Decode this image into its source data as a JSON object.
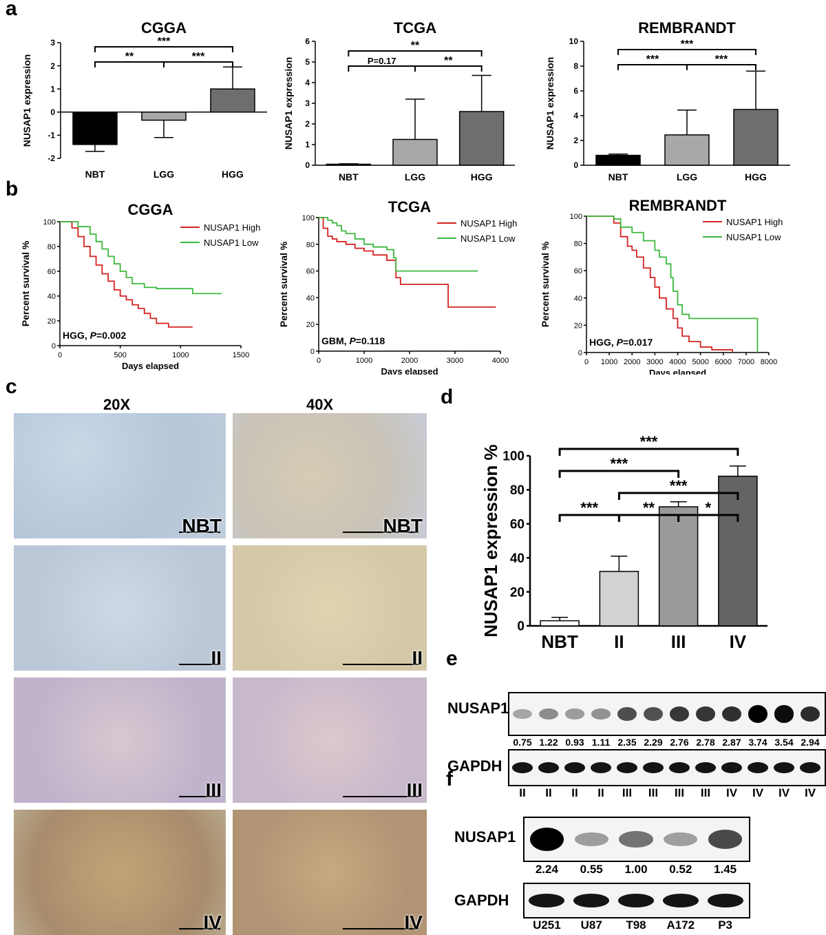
{
  "panel_labels": {
    "a": "a",
    "b": "b",
    "c": "c",
    "d": "d",
    "e": "e",
    "f": "f"
  },
  "chart_data": [
    {
      "id": "a1",
      "type": "bar",
      "title": "CGGA",
      "ylabel": "NUSAP1 expression",
      "xlabel": "",
      "categories": [
        "NBT",
        "LGG",
        "HGG"
      ],
      "values": [
        -1.4,
        -0.35,
        1.0
      ],
      "errors": [
        0.3,
        0.75,
        0.95
      ],
      "colors": [
        "#000000",
        "#a8a8a8",
        "#6e6e6e"
      ],
      "ylim": [
        -2,
        3
      ],
      "yticks": [
        "-2",
        "-1",
        "0",
        "1",
        "2",
        "3"
      ],
      "sig": [
        {
          "label": "***",
          "from": 0,
          "to": 2,
          "level": 1
        },
        {
          "label": "**",
          "from": 0,
          "to": 1,
          "level": 0
        },
        {
          "label": "***",
          "from": 1,
          "to": 2,
          "level": 0
        }
      ]
    },
    {
      "id": "a2",
      "type": "bar",
      "title": "TCGA",
      "ylabel": "NUSAP1 expression",
      "xlabel": "",
      "categories": [
        "NBT",
        "LGG",
        "HGG"
      ],
      "values": [
        0.05,
        1.25,
        2.6
      ],
      "errors": [
        0.02,
        1.95,
        1.75
      ],
      "colors": [
        "#000000",
        "#a8a8a8",
        "#6e6e6e"
      ],
      "ylim": [
        0,
        6
      ],
      "yticks": [
        "0",
        "1",
        "2",
        "3",
        "4",
        "5",
        "6"
      ],
      "sig": [
        {
          "label": "**",
          "from": 0,
          "to": 2,
          "level": 1
        },
        {
          "label": "P=0.17",
          "from": 0,
          "to": 1,
          "level": 0
        },
        {
          "label": "**",
          "from": 1,
          "to": 2,
          "level": 0
        }
      ]
    },
    {
      "id": "a3",
      "type": "bar",
      "title": "REMBRANDT",
      "ylabel": "NUSAP1 expression",
      "xlabel": "",
      "categories": [
        "NBT",
        "LGG",
        "HGG"
      ],
      "values": [
        0.8,
        2.45,
        4.5
      ],
      "errors": [
        0.1,
        2.0,
        3.1
      ],
      "colors": [
        "#000000",
        "#a8a8a8",
        "#6e6e6e"
      ],
      "ylim": [
        0,
        10
      ],
      "yticks": [
        "0",
        "2",
        "4",
        "6",
        "8",
        "10"
      ],
      "sig": [
        {
          "label": "***",
          "from": 0,
          "to": 2,
          "level": 1
        },
        {
          "label": "***",
          "from": 0,
          "to": 1,
          "level": 0
        },
        {
          "label": "***",
          "from": 1,
          "to": 2,
          "level": 0
        }
      ]
    },
    {
      "id": "b1",
      "type": "line",
      "title": "CGGA",
      "ylabel": "Percent survival %",
      "xlabel": "Days elapsed",
      "xlim": [
        0,
        1500
      ],
      "ylim": [
        0,
        100
      ],
      "xticks": [
        "0",
        "500",
        "1000",
        "1500"
      ],
      "yticks": [
        "0",
        "20",
        "40",
        "60",
        "80",
        "100"
      ],
      "annotation": {
        "group": "HGG, ",
        "p": "P",
        "val": "=0.002"
      },
      "series": [
        {
          "name": "NUSAP1 High",
          "color": "#d62020",
          "x": [
            0,
            100,
            150,
            200,
            250,
            300,
            350,
            400,
            450,
            500,
            550,
            600,
            650,
            700,
            750,
            800,
            900,
            1000,
            1100
          ],
          "y": [
            100,
            95,
            88,
            80,
            72,
            65,
            58,
            52,
            45,
            40,
            37,
            33,
            30,
            26,
            22,
            18,
            15,
            15,
            15
          ]
        },
        {
          "name": "NUSAP1 Low",
          "color": "#3cb83c",
          "x": [
            0,
            150,
            250,
            300,
            350,
            400,
            450,
            500,
            550,
            600,
            700,
            800,
            900,
            1000,
            1100,
            1200,
            1340
          ],
          "y": [
            100,
            96,
            90,
            84,
            78,
            72,
            66,
            60,
            55,
            50,
            47,
            46,
            46,
            46,
            42,
            42,
            42
          ]
        }
      ]
    },
    {
      "id": "b2",
      "type": "line",
      "title": "TCGA",
      "ylabel": "Percent survival %",
      "xlabel": "Days elapsed",
      "xlim": [
        0,
        4000
      ],
      "ylim": [
        0,
        100
      ],
      "xticks": [
        "0",
        "1000",
        "2000",
        "3000",
        "4000"
      ],
      "yticks": [
        "0",
        "20",
        "40",
        "60",
        "80",
        "100"
      ],
      "annotation": {
        "group": "GBM, ",
        "p": "P",
        "val": "=0.118"
      },
      "series": [
        {
          "name": "NUSAP1 High",
          "color": "#d62020",
          "x": [
            0,
            100,
            200,
            300,
            400,
            600,
            800,
            1000,
            1200,
            1500,
            1700,
            1800,
            2800,
            2850,
            3900
          ],
          "y": [
            100,
            92,
            86,
            84,
            82,
            80,
            77,
            75,
            72,
            68,
            55,
            50,
            50,
            33,
            33
          ]
        },
        {
          "name": "NUSAP1 Low",
          "color": "#3cb83c",
          "x": [
            0,
            200,
            300,
            400,
            500,
            600,
            800,
            1000,
            1200,
            1500,
            1650,
            1700,
            1800,
            2000,
            3500
          ],
          "y": [
            100,
            98,
            96,
            94,
            90,
            88,
            84,
            80,
            78,
            76,
            70,
            60,
            60,
            60,
            60
          ]
        }
      ]
    },
    {
      "id": "b3",
      "type": "line",
      "title": "REMBRANDT",
      "ylabel": "Percent survival %",
      "xlabel": "Days elapsed",
      "xlim": [
        0,
        8000
      ],
      "ylim": [
        0,
        100
      ],
      "xticks": [
        "0",
        "1000",
        "2000",
        "3000",
        "4000",
        "5000",
        "6000",
        "7000",
        "8000"
      ],
      "yticks": [
        "0",
        "20",
        "40",
        "60",
        "80",
        "100"
      ],
      "annotation": {
        "group": "HGG, ",
        "p": "P",
        "val": "=0.017"
      },
      "series": [
        {
          "name": "NUSAP1 High",
          "color": "#d62020",
          "x": [
            0,
            1000,
            1200,
            1500,
            1800,
            2000,
            2200,
            2500,
            2800,
            3000,
            3200,
            3500,
            3800,
            4000,
            4200,
            4500,
            5000,
            5500,
            6000,
            6400
          ],
          "y": [
            100,
            100,
            95,
            85,
            78,
            75,
            70,
            62,
            55,
            48,
            40,
            32,
            25,
            18,
            12,
            8,
            4,
            2,
            2,
            0
          ]
        },
        {
          "name": "NUSAP1 Low",
          "color": "#3cb83c",
          "x": [
            0,
            1000,
            1200,
            1500,
            2000,
            2500,
            3000,
            3200,
            3500,
            3700,
            3800,
            4000,
            4200,
            4500,
            5000,
            6000,
            7400,
            7500
          ],
          "y": [
            100,
            100,
            98,
            92,
            88,
            82,
            75,
            70,
            65,
            55,
            45,
            35,
            28,
            25,
            25,
            25,
            25,
            0
          ]
        }
      ]
    },
    {
      "id": "d",
      "type": "bar",
      "title": "",
      "ylabel": "NUSAP1 expression %",
      "xlabel": "",
      "categories": [
        "NBT",
        "II",
        "III",
        "IV"
      ],
      "values": [
        3,
        32,
        70,
        88
      ],
      "errors": [
        2,
        9,
        3,
        6
      ],
      "colors": [
        "#ffffff",
        "#d2d2d2",
        "#9a9a9a",
        "#646464"
      ],
      "ylim": [
        0,
        100
      ],
      "yticks": [
        "0",
        "20",
        "40",
        "60",
        "80",
        "100"
      ],
      "sig": [
        {
          "label": "***",
          "from": 0,
          "to": 3,
          "level": 3
        },
        {
          "label": "***",
          "from": 0,
          "to": 2,
          "level": 2
        },
        {
          "label": "***",
          "from": 1,
          "to": 3,
          "level": 1
        },
        {
          "label": "*",
          "from": 2,
          "to": 3,
          "level": 0
        },
        {
          "label": "**",
          "from": 1,
          "to": 2,
          "level": 0
        },
        {
          "label": "***",
          "from": 0,
          "to": 1,
          "level": 0
        }
      ]
    }
  ],
  "ihc": {
    "col_20x": "20X",
    "col_40x": "40X",
    "rows": [
      "NBT",
      "II",
      "III",
      "IV"
    ]
  },
  "blot_e": {
    "target": "NUSAP1",
    "control": "GAPDH",
    "values": [
      "0.75",
      "1.22",
      "0.93",
      "1.11",
      "2.35",
      "2.29",
      "2.76",
      "2.78",
      "2.87",
      "3.74",
      "3.54",
      "2.94"
    ],
    "lanes": [
      "II",
      "II",
      "II",
      "II",
      "III",
      "III",
      "III",
      "III",
      "IV",
      "IV",
      "IV",
      "IV"
    ]
  },
  "blot_f": {
    "target": "NUSAP1",
    "control": "GAPDH",
    "values": [
      "2.24",
      "0.55",
      "1.00",
      "0.52",
      "1.45"
    ],
    "lanes": [
      "U251",
      "U87",
      "T98",
      "A172",
      "P3"
    ]
  }
}
